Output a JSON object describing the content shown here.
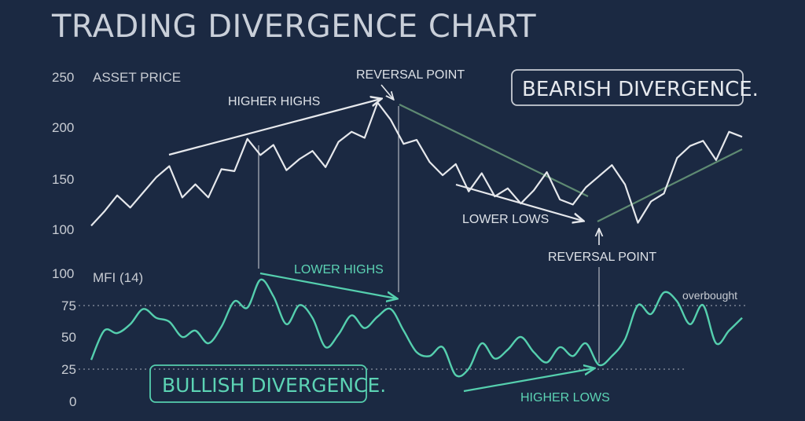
{
  "title": "TRADING DIVERGENCE CHART",
  "colors": {
    "background": "#1b2942",
    "price_line": "#e6e8ec",
    "mfi_line": "#55cfae",
    "bearish_trend": "#5e8a72",
    "annotation_white": "#dde1e7",
    "annotation_teal": "#5cd3b4",
    "grid_dotted": "#8d95a3"
  },
  "chart_data": [
    {
      "type": "line",
      "panel_label": "ASSET PRICE",
      "ylim": [
        100,
        250
      ],
      "yticks": [
        "250",
        "200",
        "150",
        "100"
      ],
      "x": [
        0,
        2,
        4,
        6,
        8,
        10,
        12,
        14,
        16,
        18,
        20,
        22,
        24,
        26,
        28,
        30,
        32,
        34,
        36,
        38,
        40,
        42,
        44,
        46,
        48,
        50,
        52,
        54,
        56,
        58,
        60,
        62,
        64,
        66,
        68,
        70,
        72,
        74,
        76,
        78,
        80,
        82,
        84,
        86,
        88,
        90,
        92,
        94,
        96,
        98,
        100
      ],
      "series": [
        {
          "values": [
            102,
            116,
            132,
            120,
            135,
            150,
            161,
            130,
            143,
            130,
            158,
            156,
            188,
            172,
            182,
            157,
            168,
            176,
            160,
            185,
            195,
            189,
            224,
            207,
            183,
            187,
            165,
            152,
            163,
            136,
            154,
            131,
            139,
            124,
            137,
            155,
            128,
            123,
            140,
            151,
            162,
            143,
            105,
            126,
            134,
            169,
            181,
            186,
            167,
            195,
            190
          ]
        }
      ],
      "annotations": [
        {
          "text": "REVERSAL POINT",
          "type": "arrow-down"
        },
        {
          "text": "HIGHER HIGHS",
          "type": "trend-arrow"
        },
        {
          "text": "LOWER LOWS",
          "type": "trend-arrow"
        },
        {
          "text": "REVERSAL POINT",
          "type": "arrow-up"
        },
        {
          "text": "BEARISH DIVERGENCE.",
          "type": "box"
        }
      ]
    },
    {
      "type": "line",
      "panel_label": "MFI (14)",
      "ylim": [
        0,
        100
      ],
      "yticks": [
        "100",
        "75",
        "50",
        "25",
        "0"
      ],
      "reference_lines": [
        {
          "value": 75,
          "label": "overbought"
        },
        {
          "value": 25,
          "label": ""
        }
      ],
      "x": [
        0,
        2,
        4,
        6,
        8,
        10,
        12,
        14,
        16,
        18,
        20,
        22,
        24,
        26,
        28,
        30,
        32,
        34,
        36,
        38,
        40,
        42,
        44,
        46,
        48,
        50,
        52,
        54,
        56,
        58,
        60,
        62,
        64,
        66,
        68,
        70,
        72,
        74,
        76,
        78,
        80,
        82,
        84,
        86,
        88,
        90,
        92,
        94,
        96,
        98,
        100
      ],
      "series": [
        {
          "values": [
            32,
            55,
            53,
            60,
            72,
            65,
            62,
            50,
            55,
            45,
            58,
            78,
            73,
            95,
            82,
            60,
            75,
            65,
            42,
            52,
            67,
            57,
            66,
            72,
            55,
            38,
            35,
            42,
            20,
            25,
            45,
            33,
            40,
            50,
            38,
            30,
            42,
            35,
            45,
            28,
            35,
            48,
            75,
            68,
            85,
            78,
            60,
            75,
            45,
            55,
            65
          ]
        }
      ],
      "annotations": [
        {
          "text": "LOWER HIGHS",
          "type": "trend-arrow"
        },
        {
          "text": "HIGHER LOWS",
          "type": "trend-arrow"
        },
        {
          "text": "BULLISH DIVERGENCE.",
          "type": "box"
        }
      ]
    }
  ]
}
